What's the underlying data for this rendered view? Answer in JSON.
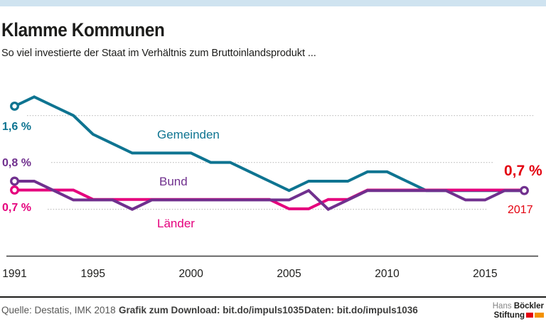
{
  "header": {
    "title": "Klamme Kommunen",
    "subtitle": "So viel investierte der Staat im Verhältnis zum Bruttoinlandsprodukt ..."
  },
  "chart_data": {
    "type": "line",
    "years": [
      1991,
      1992,
      1993,
      1994,
      1995,
      1996,
      1997,
      1998,
      1999,
      2000,
      2001,
      2002,
      2003,
      2004,
      2005,
      2006,
      2007,
      2008,
      2009,
      2010,
      2011,
      2012,
      2013,
      2014,
      2015,
      2016,
      2017
    ],
    "series": [
      {
        "name": "Gemeinden",
        "color": "#0e7491",
        "start_label": "1,6 %",
        "values": [
          1.6,
          1.7,
          1.6,
          1.5,
          1.3,
          1.2,
          1.1,
          1.1,
          1.1,
          1.1,
          1.0,
          1.0,
          0.9,
          0.8,
          0.7,
          0.8,
          0.8,
          0.8,
          0.9,
          0.9,
          0.8,
          0.7,
          0.7,
          0.7,
          0.7,
          0.7,
          0.7
        ]
      },
      {
        "name": "Bund",
        "color": "#70308e",
        "start_label": "0,8 %",
        "values": [
          0.8,
          0.8,
          0.7,
          0.6,
          0.6,
          0.6,
          0.5,
          0.6,
          0.6,
          0.6,
          0.6,
          0.6,
          0.6,
          0.6,
          0.6,
          0.7,
          0.5,
          0.6,
          0.7,
          0.7,
          0.7,
          0.7,
          0.7,
          0.6,
          0.6,
          0.7,
          0.7
        ]
      },
      {
        "name": "Länder",
        "color": "#e5007d",
        "start_label": "0,7 %",
        "values": [
          0.7,
          0.7,
          0.7,
          0.7,
          0.6,
          0.6,
          0.6,
          0.6,
          0.6,
          0.6,
          0.6,
          0.6,
          0.6,
          0.6,
          0.5,
          0.5,
          0.6,
          0.6,
          0.7,
          0.7,
          0.7,
          0.7,
          0.7,
          0.7,
          0.7,
          0.7,
          0.7
        ]
      }
    ],
    "end_label": {
      "value": "0,7 %",
      "year": "2017",
      "color": "#e3000f"
    },
    "x_ticks": [
      1991,
      1995,
      2000,
      2005,
      2010,
      2015
    ],
    "gridlines": [
      0.5,
      1.0,
      1.5
    ],
    "ylim": [
      0,
      1.8
    ],
    "unit": "%",
    "grid_style": "dotted-horizontal",
    "legend_position": "inline-labels"
  },
  "footer": {
    "source": "Quelle: Destatis, IMK 2018",
    "download": "Grafik zum Download: bit.do/impuls1035",
    "data": "Daten: bit.do/impuls1036",
    "logo": {
      "line1_light": "Hans",
      "line1_bold": "Böckler",
      "line2_bold": "Stiftung"
    }
  }
}
